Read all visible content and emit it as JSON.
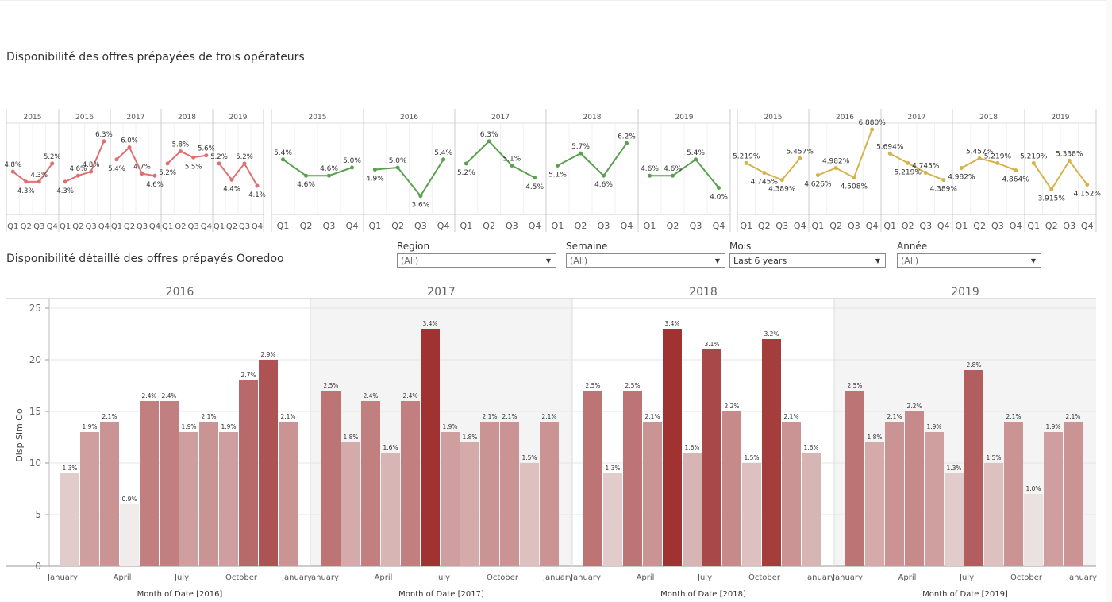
{
  "titles": {
    "top": "Disponibilité des offres prépayées de trois opérateurs",
    "detail": "Disponibilité détaillé  des offres prépayés Ooredoo"
  },
  "filters": [
    {
      "label": "Region",
      "value": "(All)"
    },
    {
      "label": "Semaine",
      "value": "(All)"
    },
    {
      "label": "Mois",
      "value": "Last 6 years"
    },
    {
      "label": "Année",
      "value": "(All)"
    }
  ],
  "colors": {
    "red": "#e07070",
    "green": "#59a14f",
    "gold": "#d4b44a"
  },
  "chart_data": [
    {
      "type": "line",
      "years": [
        "2015",
        "2016",
        "2017",
        "2018",
        "2019"
      ],
      "categories": [
        "Q1",
        "Q2",
        "Q3",
        "Q4"
      ],
      "series": [
        {
          "values": [
            [
              4.8,
              4.3,
              4.3,
              5.2
            ],
            [
              4.3,
              4.6,
              4.8,
              6.3
            ],
            [
              5.4,
              6.0,
              4.7,
              4.6
            ],
            [
              5.2,
              5.8,
              5.5,
              5.6
            ],
            [
              5.2,
              4.4,
              5.2,
              4.1
            ]
          ],
          "labels": [
            [
              "4.8%",
              "4.3%",
              "4.3%",
              "5.2%"
            ],
            [
              "4.3%",
              "4.6%",
              "4.8%",
              "6.3%"
            ],
            [
              "5.4%",
              "6.0%",
              "4.7%",
              "4.6%"
            ],
            [
              "5.2%",
              "5.8%",
              "5.5%",
              "5.6%"
            ],
            [
              "5.2%",
              "4.4%",
              "5.2%",
              "4.1%"
            ]
          ]
        }
      ]
    },
    {
      "type": "line",
      "years": [
        "2015",
        "2016",
        "2017",
        "2018",
        "2019"
      ],
      "categories": [
        "Q1",
        "Q2",
        "Q3",
        "Q4"
      ],
      "series": [
        {
          "values": [
            [
              5.4,
              4.6,
              4.6,
              5.0
            ],
            [
              4.9,
              5.0,
              3.6,
              5.4
            ],
            [
              5.2,
              6.3,
              5.1,
              4.5
            ],
            [
              5.1,
              5.7,
              4.6,
              6.2
            ],
            [
              4.6,
              4.6,
              5.4,
              4.0
            ]
          ],
          "labels": [
            [
              "5.4%",
              "4.6%",
              "4.6%",
              "5.0%"
            ],
            [
              "4.9%",
              "5.0%",
              "3.6%",
              "5.4%"
            ],
            [
              "5.2%",
              "6.3%",
              "5.1%",
              "4.5%"
            ],
            [
              "5.1%",
              "5.7%",
              "4.6%",
              "6.2%"
            ],
            [
              "4.6%",
              "4.6%",
              "5.4%",
              "4.0%"
            ]
          ]
        }
      ]
    },
    {
      "type": "line",
      "years": [
        "2015",
        "2016",
        "2017",
        "2018",
        "2019"
      ],
      "categories": [
        "Q1",
        "Q2",
        "Q3",
        "Q4"
      ],
      "series": [
        {
          "values": [
            [
              5.219,
              4.745,
              4.389,
              5.457
            ],
            [
              4.626,
              4.982,
              4.508,
              6.88
            ],
            [
              5.694,
              5.219,
              4.745,
              4.389
            ],
            [
              4.982,
              5.457,
              5.219,
              4.864
            ],
            [
              5.219,
              3.915,
              5.338,
              4.152
            ]
          ],
          "labels": [
            [
              "5.219%",
              "4.745%",
              "4.389%",
              "5.457%"
            ],
            [
              "4.626%",
              "4.982%",
              "4.508%",
              "6.880%"
            ],
            [
              "5.694%",
              "5.219%",
              "4.745%",
              "4.389%"
            ],
            [
              "4.982%",
              "5.457%",
              "5.219%",
              "4.864%"
            ],
            [
              "5.219%",
              "3.915%",
              "5.338%",
              "4.152%"
            ]
          ]
        }
      ]
    },
    {
      "type": "bar",
      "ylabel": "Disp Sim Oo",
      "ylim": [
        0,
        25
      ],
      "yticks": [
        "0",
        "5",
        "10",
        "15",
        "20",
        "25"
      ],
      "panels": [
        {
          "year": "2016",
          "xlabel": "Month of Date [2016]",
          "values": [
            9,
            13,
            14,
            6,
            16,
            16,
            13,
            14,
            13,
            18,
            20,
            14
          ],
          "labels": [
            "1.3%",
            "1.9%",
            "2.1%",
            "0.9%",
            "2.4%",
            "2.4%",
            "1.9%",
            "2.1%",
            "1.9%",
            "2.7%",
            "2.9%",
            "2.1%"
          ]
        },
        {
          "year": "2017",
          "xlabel": "Month of Date [2017]",
          "values": [
            17,
            12,
            16,
            11,
            16,
            23,
            13,
            12,
            14,
            14,
            10,
            14
          ],
          "labels": [
            "2.5%",
            "1.8%",
            "2.4%",
            "1.6%",
            "2.4%",
            "3.4%",
            "1.9%",
            "1.8%",
            "2.1%",
            "2.1%",
            "1.5%",
            "2.1%"
          ]
        },
        {
          "year": "2018",
          "xlabel": "Month of Date [2018]",
          "values": [
            17,
            9,
            17,
            14,
            23,
            11,
            21,
            15,
            10,
            22,
            14,
            11
          ],
          "labels": [
            "2.5%",
            "1.3%",
            "2.5%",
            "2.1%",
            "3.4%",
            "1.6%",
            "3.1%",
            "2.2%",
            "1.5%",
            "3.2%",
            "2.1%",
            "1.6%"
          ]
        },
        {
          "year": "2019",
          "xlabel": "Month of Date [2019]",
          "values": [
            17,
            12,
            14,
            15,
            13,
            9,
            19,
            10,
            14,
            7,
            13,
            14
          ],
          "labels": [
            "2.5%",
            "1.8%",
            "2.1%",
            "2.2%",
            "1.9%",
            "1.3%",
            "2.8%",
            "1.5%",
            "2.1%",
            "1.0%",
            "1.9%",
            "2.1%"
          ]
        }
      ],
      "month_ticks": [
        "January",
        "April",
        "July",
        "October",
        "January"
      ]
    }
  ]
}
